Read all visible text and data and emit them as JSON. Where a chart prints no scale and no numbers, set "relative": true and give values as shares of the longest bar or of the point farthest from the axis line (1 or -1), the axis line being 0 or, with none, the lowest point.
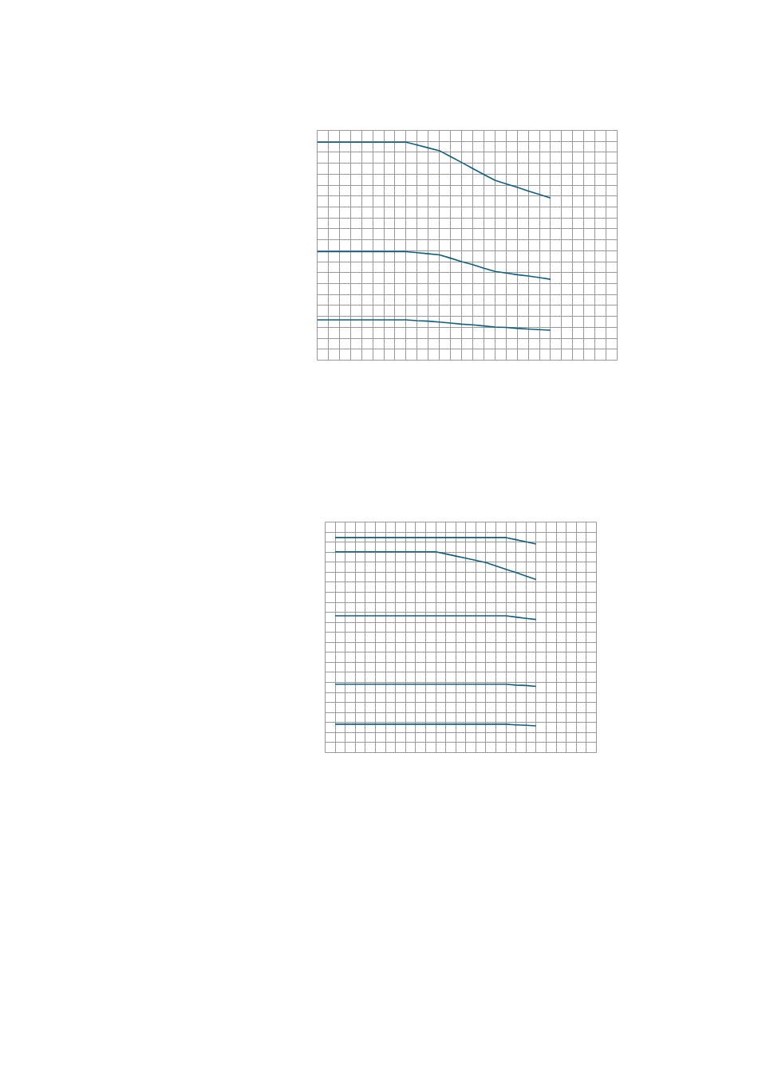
{
  "chart_data": [
    {
      "type": "line",
      "relative": true,
      "grid": true,
      "tick_labels": false,
      "categories": [
        null,
        null,
        null,
        null,
        null,
        null,
        null,
        null,
        null,
        null,
        null,
        null,
        null,
        null,
        null,
        null,
        null,
        null,
        null,
        null,
        null,
        null,
        null,
        null,
        null,
        null,
        null,
        null
      ],
      "series": [
        {
          "color": "#0f5f7f",
          "values": [
            1.0,
            1.0,
            1.0,
            1.0,
            1.0,
            1.0,
            1.0,
            1.0,
            1.0,
            0.987,
            0.974,
            0.961,
            0.934,
            0.907,
            0.879,
            0.852,
            0.825,
            0.809,
            0.793,
            0.776,
            0.76,
            0.744,
            null,
            null,
            null,
            null,
            null,
            null
          ]
        },
        {
          "color": "#0f5f7f",
          "values": [
            0.498,
            0.498,
            0.498,
            0.498,
            0.498,
            0.498,
            0.498,
            0.498,
            0.498,
            0.493,
            0.488,
            0.483,
            0.468,
            0.452,
            0.438,
            0.422,
            0.407,
            0.4,
            0.392,
            0.386,
            0.379,
            0.371,
            null,
            null,
            null,
            null,
            null,
            null
          ]
        },
        {
          "color": "#0f5f7f",
          "values": [
            0.185,
            0.185,
            0.185,
            0.185,
            0.185,
            0.185,
            0.185,
            0.185,
            0.185,
            0.181,
            0.179,
            0.175,
            0.17,
            0.165,
            0.162,
            0.157,
            0.152,
            0.15,
            0.146,
            0.143,
            0.14,
            0.137,
            null,
            null,
            null,
            null,
            null,
            null
          ]
        }
      ]
    },
    {
      "type": "line",
      "relative": true,
      "grid": true,
      "tick_labels": false,
      "categories": [
        null,
        null,
        null,
        null,
        null,
        null,
        null,
        null,
        null,
        null,
        null,
        null,
        null,
        null,
        null,
        null,
        null,
        null,
        null,
        null,
        null,
        null,
        null,
        null,
        null,
        null,
        null,
        null
      ],
      "series": [
        {
          "color": "#0f5f7f",
          "values": [
            null,
            1.0,
            1.0,
            1.0,
            1.0,
            1.0,
            1.0,
            1.0,
            1.0,
            1.0,
            1.0,
            1.0,
            1.0,
            1.0,
            1.0,
            1.0,
            1.0,
            1.0,
            1.0,
            0.99,
            0.98,
            0.97,
            null,
            null,
            null,
            null,
            null,
            null
          ]
        },
        {
          "color": "#0f5f7f",
          "values": [
            null,
            0.934,
            0.934,
            0.934,
            0.934,
            0.934,
            0.934,
            0.934,
            0.934,
            0.934,
            0.934,
            0.934,
            0.924,
            0.914,
            0.904,
            0.894,
            0.884,
            0.868,
            0.852,
            0.837,
            0.821,
            0.805,
            null,
            null,
            null,
            null,
            null,
            null
          ]
        },
        {
          "color": "#0f5f7f",
          "values": [
            null,
            0.636,
            0.636,
            0.636,
            0.636,
            0.636,
            0.636,
            0.636,
            0.636,
            0.636,
            0.636,
            0.636,
            0.636,
            0.636,
            0.636,
            0.636,
            0.636,
            0.636,
            0.636,
            0.63,
            0.624,
            0.619,
            null,
            null,
            null,
            null,
            null,
            null
          ]
        },
        {
          "color": "#0f5f7f",
          "values": [
            null,
            0.318,
            0.318,
            0.318,
            0.318,
            0.318,
            0.318,
            0.318,
            0.318,
            0.318,
            0.318,
            0.318,
            0.318,
            0.318,
            0.318,
            0.318,
            0.318,
            0.318,
            0.318,
            0.314,
            0.312,
            0.308,
            null,
            null,
            null,
            null,
            null,
            null
          ]
        },
        {
          "color": "#0f5f7f",
          "values": [
            null,
            0.132,
            0.132,
            0.132,
            0.132,
            0.132,
            0.132,
            0.132,
            0.132,
            0.132,
            0.132,
            0.132,
            0.132,
            0.132,
            0.132,
            0.132,
            0.132,
            0.132,
            0.132,
            0.129,
            0.127,
            0.124,
            null,
            null,
            null,
            null,
            null,
            null
          ]
        }
      ]
    }
  ]
}
